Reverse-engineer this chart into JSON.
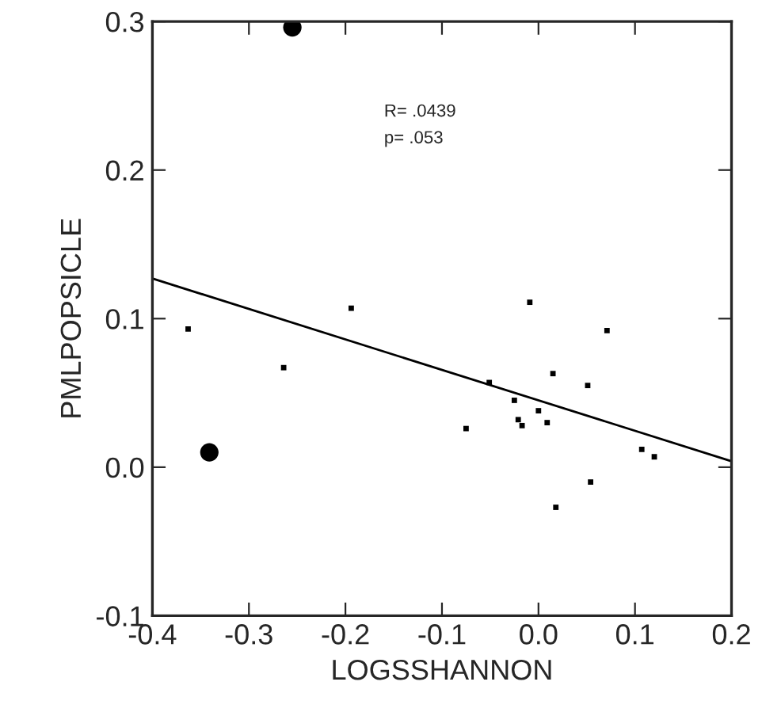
{
  "chart_data": {
    "type": "scatter",
    "xlabel": "LOGSSHANNON",
    "ylabel": "PMLPOPSICLE",
    "xlim": [
      -0.4,
      0.2
    ],
    "xticks": [
      -0.4,
      -0.3,
      -0.2,
      -0.1,
      {
        "value": 0,
        "label": "0.0"
      },
      0.1,
      0.2
    ],
    "ylim": [
      -0.1,
      0.3
    ],
    "yticks": [
      -0.1,
      {
        "value": 0,
        "label": "0.0"
      },
      0.1,
      0.2,
      0.3
    ],
    "grid": false,
    "legend": false,
    "annotations": [
      "R= .0439",
      "p= .053"
    ],
    "series": [
      {
        "marker": "square",
        "color": "#000000",
        "x": [
          -0.363,
          -0.264,
          -0.194,
          -0.075,
          -0.051,
          -0.025,
          -0.021,
          -0.017,
          -0.009,
          0.0,
          0.009,
          0.015,
          0.018,
          0.051,
          0.054,
          0.071,
          0.107,
          0.12
        ],
        "values": [
          0.093,
          0.067,
          0.107,
          0.026,
          0.057,
          0.045,
          0.032,
          0.028,
          0.111,
          0.038,
          0.03,
          0.063,
          -0.027,
          0.055,
          -0.01,
          0.092,
          0.012,
          0.007
        ]
      },
      {
        "marker": "circle",
        "color": "#000000",
        "x": [
          -0.255,
          -0.341
        ],
        "values": [
          0.296,
          0.01
        ]
      },
      {
        "type": "line",
        "color": "#000000",
        "x": [
          -0.4,
          0.2
        ],
        "values": [
          0.127,
          0.004
        ]
      }
    ]
  }
}
